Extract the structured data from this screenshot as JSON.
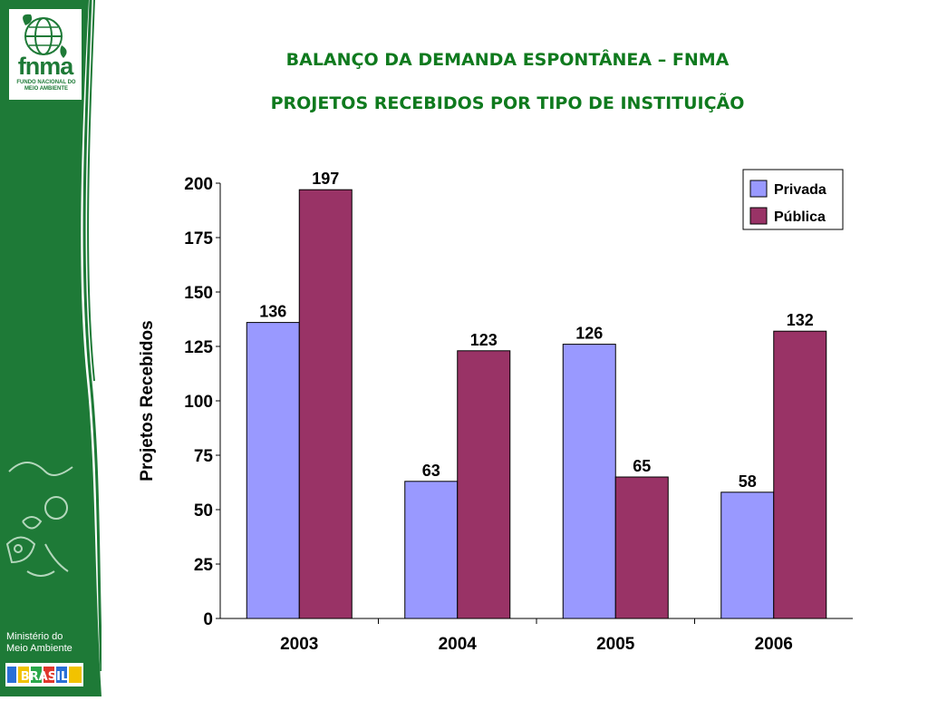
{
  "header": {
    "title_line1": "BALANÇO DA DEMANDA ESPONTÂNEA – FNMA",
    "title_line2": "PROJETOS RECEBIDOS POR TIPO DE INSTITUIÇÃO"
  },
  "sidebar": {
    "logo_text": "fnma",
    "logo_subtext": "FUNDO NACIONAL DO MEIO AMBIENTE",
    "ministry_text": "Ministério do\nMeio Ambiente",
    "brasil_text": "BRASIL"
  },
  "colors": {
    "sidebar_green": "#1e7a37",
    "privada": "#9999ff",
    "publica": "#993366"
  },
  "chart_data": {
    "type": "bar",
    "categories": [
      "2003",
      "2004",
      "2005",
      "2006"
    ],
    "series": [
      {
        "name": "Privada",
        "values": [
          136,
          63,
          126,
          58
        ],
        "color": "#9999ff"
      },
      {
        "name": "Pública",
        "values": [
          197,
          123,
          65,
          132
        ],
        "color": "#993366"
      }
    ],
    "ylabel": "Projetos Recebidos",
    "ylim": [
      0,
      200
    ],
    "yticks": [
      0,
      25,
      50,
      75,
      100,
      125,
      150,
      175,
      200
    ],
    "legend_position": "top-right",
    "grid": false
  }
}
